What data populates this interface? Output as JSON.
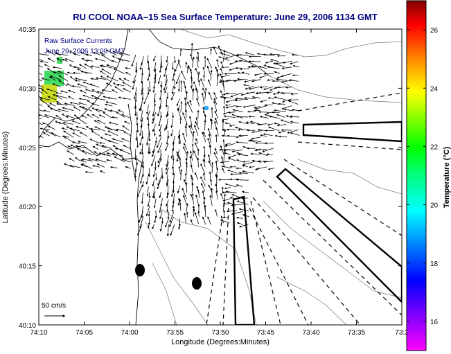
{
  "figure": {
    "title": "RU COOL  NOAA–15  Sea Surface Temperature:  June 29, 2006 1134 GMT",
    "subtitle_line1": "Raw Surface Currents",
    "subtitle_line2": "June 29, 2006 13:00 GMT",
    "xlabel": "Longitude (Degrees:Minutes)",
    "ylabel": "Latitude (Degrees:Minutes)",
    "scale_label": "50 cm/s",
    "colorbar_label": "Temperature (°C)"
  },
  "axes": {
    "x_ticks": [
      "74:10",
      "74:05",
      "74:00",
      "73:55",
      "73:50",
      "73:45",
      "73:40",
      "73:35",
      "73:3"
    ],
    "y_ticks": [
      "40:35",
      "40:30",
      "40:25",
      "40:20",
      "40:15",
      "40:10"
    ]
  },
  "colorbar": {
    "ticks": [
      "26",
      "24",
      "22",
      "20",
      "18",
      "16"
    ],
    "min": 15,
    "max": 27,
    "colors": [
      "#ff00ff",
      "#8000ff",
      "#0000ff",
      "#0080ff",
      "#00ffff",
      "#00ff80",
      "#00ff00",
      "#80ff00",
      "#ffff00",
      "#ff8000",
      "#ff0000",
      "#800000"
    ]
  },
  "colors": {
    "title": "#000080",
    "sst_green": "#44dd66",
    "sst_yellow": "#ccdd22",
    "sst_cyan": "#33aaff"
  }
}
